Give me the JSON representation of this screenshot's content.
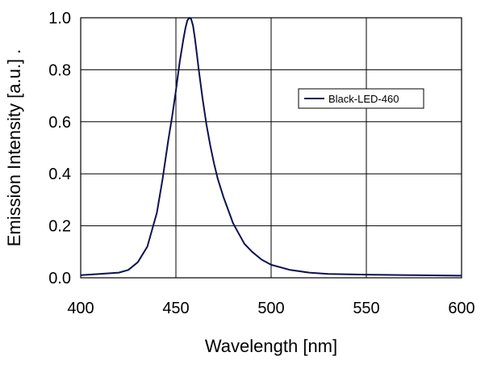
{
  "chart_data": {
    "type": "line",
    "title": "",
    "xlabel": "Wavelength [nm]",
    "ylabel": "Emission Intensity [a.u.] .",
    "xlim": [
      400,
      600
    ],
    "ylim": [
      0,
      1.0
    ],
    "x_ticks": [
      "400",
      "450",
      "500",
      "550",
      "600"
    ],
    "y_ticks": [
      "0.0",
      "0.2",
      "0.4",
      "0.6",
      "0.8",
      "1.0"
    ],
    "grid": true,
    "legend_position": "top-right",
    "series": [
      {
        "name": "Black-LED-460",
        "color": "#0b1150",
        "x": [
          400,
          410,
          420,
          425,
          430,
          435,
          440,
          443,
          446,
          448,
          450,
          452,
          454,
          455,
          456,
          457,
          458,
          459,
          460,
          461,
          462,
          464,
          466,
          468,
          470,
          472,
          475,
          478,
          480,
          483,
          486,
          490,
          495,
          500,
          510,
          520,
          530,
          550,
          575,
          600
        ],
        "y": [
          0.01,
          0.015,
          0.02,
          0.03,
          0.06,
          0.12,
          0.25,
          0.38,
          0.53,
          0.62,
          0.72,
          0.83,
          0.92,
          0.96,
          0.99,
          1.0,
          0.995,
          0.97,
          0.92,
          0.86,
          0.8,
          0.69,
          0.59,
          0.51,
          0.44,
          0.38,
          0.31,
          0.25,
          0.21,
          0.17,
          0.13,
          0.1,
          0.07,
          0.05,
          0.03,
          0.02,
          0.015,
          0.012,
          0.01,
          0.008
        ]
      }
    ]
  }
}
